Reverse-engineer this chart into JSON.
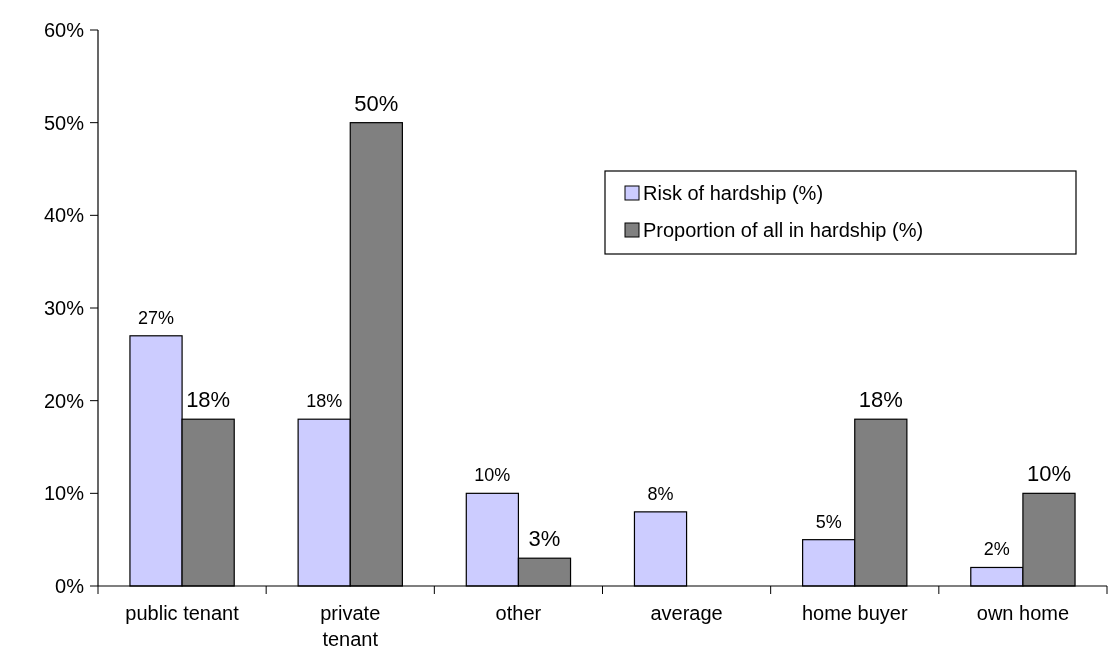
{
  "chart_data": {
    "type": "bar",
    "categories": [
      "public tenant",
      "private tenant",
      "other",
      "average",
      "home buyer",
      "own home"
    ],
    "series": [
      {
        "name": "Risk of hardship (%)",
        "color": "#ccccff",
        "values": [
          27,
          18,
          10,
          8,
          5,
          2
        ],
        "value_labels": [
          "27%",
          "18%",
          "10%",
          "8%",
          "5%",
          "2%"
        ]
      },
      {
        "name": "Proportion of all in hardship (%)",
        "color": "#808080",
        "values": [
          18,
          50,
          3,
          null,
          18,
          10
        ],
        "value_labels": [
          "18%",
          "50%",
          "3%",
          null,
          "18%",
          "10%"
        ]
      }
    ],
    "ylim": [
      0,
      60
    ],
    "yticks": [
      {
        "value": 0,
        "label": "0%"
      },
      {
        "value": 10,
        "label": "10%"
      },
      {
        "value": 20,
        "label": "20%"
      },
      {
        "value": 30,
        "label": "30%"
      },
      {
        "value": 40,
        "label": "40%"
      },
      {
        "value": 50,
        "label": "50%"
      },
      {
        "value": 60,
        "label": "60%"
      }
    ],
    "grid": false,
    "legend": "top right"
  }
}
